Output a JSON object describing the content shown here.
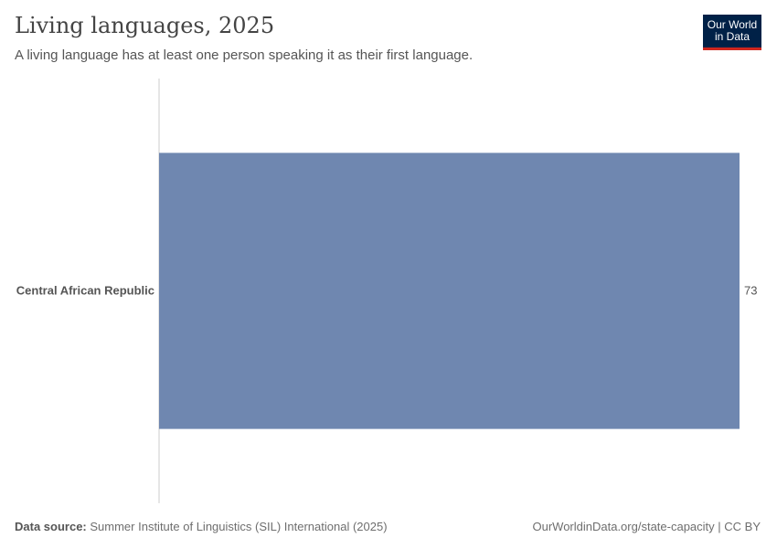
{
  "header": {
    "title": "Living languages, 2025",
    "subtitle": "A living language has at least one person speaking it as their first language.",
    "logo_line1": "Our World",
    "logo_line2": "in Data"
  },
  "footer": {
    "source_label": "Data source:",
    "source": "Summer Institute of Linguistics (SIL) International (2025)",
    "url": "OurWorldinData.org/state-capacity | CC BY"
  },
  "chart_data": {
    "type": "bar",
    "orientation": "horizontal",
    "categories": [
      "Central African Republic"
    ],
    "values": [
      73
    ],
    "title": "Living languages, 2025",
    "xlabel": "",
    "ylabel": "",
    "grid": false,
    "colors": {
      "bar": "#6f87b0"
    }
  }
}
